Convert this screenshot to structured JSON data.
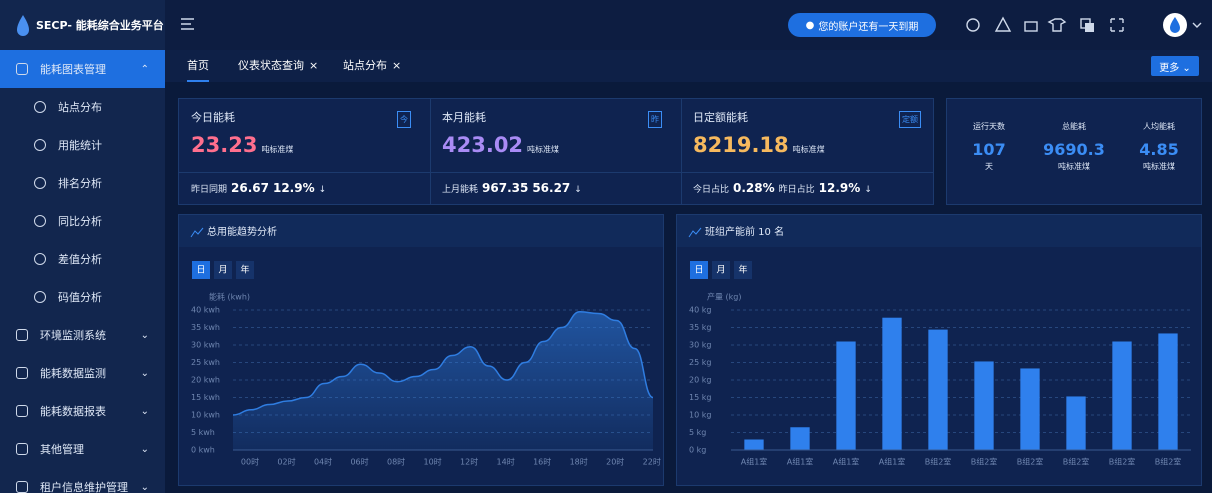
{
  "app": {
    "logo_text": "SECP- 能耗综合业务平台",
    "notice": "您的账户还有一天到期",
    "close_icon": "×",
    "more_button": "更多 ⌄"
  },
  "tabs": [
    "首页",
    "仪表状态查询",
    "站点分布"
  ],
  "menu": [
    {
      "label": "能耗图表管理",
      "arrow": "⌃",
      "children": [
        "站点分布",
        "用能统计",
        "排名分析",
        "同比分析",
        "差值分析",
        "码值分析"
      ]
    },
    {
      "label": "环境监测系统",
      "arrow": "⌄"
    },
    {
      "label": "能耗数据监测",
      "arrow": "⌄"
    },
    {
      "label": "能耗数据报表",
      "arrow": "⌄"
    },
    {
      "label": "其他管理",
      "arrow": "⌄"
    },
    {
      "label": "租户信息维护管理",
      "arrow": "⌄"
    }
  ],
  "stats": [
    {
      "title": "今日能耗",
      "icon": "今",
      "value": 23.23,
      "unit": "吨标准煤",
      "color": "#ff6f8e",
      "footer": {
        "label": "昨日同期",
        "value": 26.67,
        "change": "12.9%",
        "arrow": "↓"
      }
    },
    {
      "title": "本月能耗",
      "icon": "昨",
      "value": 423.02,
      "unit": "吨标准煤",
      "color": "#a98bf5",
      "footer": {
        "label": "上月能耗",
        "value": 967.35,
        "change": 56.27,
        "arrow": "↓"
      }
    },
    {
      "title": "日定额能耗",
      "icon": "定额",
      "value": 8219.18,
      "unit": "吨标准煤",
      "color": "#f6b95e",
      "footer": {
        "label": "今日占比",
        "value": "0.28%",
        "label2": "昨日占比",
        "change": "12.9%",
        "arrow": "↓"
      }
    }
  ],
  "summary": [
    {
      "label": "运行天数",
      "value": 107,
      "unit": "天"
    },
    {
      "label": "总能耗",
      "value": 9690.3,
      "unit": "吨标准煤"
    },
    {
      "label": "人均能耗",
      "value": 4.85,
      "unit": "吨标准煤"
    }
  ],
  "chart_data": [
    {
      "type": "area",
      "title": "总用能趋势分析",
      "buttons": [
        "日",
        "月",
        "年"
      ],
      "y_label": "能耗 (kwh)",
      "color": "#2f7de1",
      "categories": [
        "00时",
        null,
        "02时",
        null,
        "04时",
        null,
        "06时",
        null,
        "08时",
        null,
        "10时",
        null,
        "12时",
        null,
        "14时",
        null,
        "16时",
        null,
        "18时",
        null,
        "20时",
        null,
        "22时",
        null
      ],
      "values": [
        10,
        11.5,
        13,
        14,
        15,
        19,
        21,
        24.5,
        22,
        19.5,
        21,
        23,
        27,
        29.5,
        24,
        20,
        25,
        31,
        35,
        39.5,
        39,
        37,
        29,
        15
      ],
      "ylim": [
        0,
        40
      ],
      "yticks": [
        {
          "value": 0,
          "label": "0 kwh"
        },
        {
          "value": 5,
          "label": "5 kwh"
        },
        {
          "value": 10,
          "label": "10 kwh"
        },
        {
          "value": 15,
          "label": "15 kwh"
        },
        {
          "value": 20,
          "label": "20 kwh"
        },
        {
          "value": 25,
          "label": "25 kwh"
        },
        {
          "value": 30,
          "label": "30 kwh"
        },
        {
          "value": 35,
          "label": "35 kwh"
        },
        {
          "value": 40,
          "label": "40 kwh"
        }
      ],
      "grid": true
    },
    {
      "type": "bar",
      "title": "班组产能前 10 名",
      "buttons": [
        "日",
        "月",
        "年"
      ],
      "y_label": "产量 (kg)",
      "color": "#2f80ed",
      "categories": [
        "A组1室",
        "A组1室",
        "A组1室",
        "A组1室",
        "B组2室",
        "B组2室",
        "B组2室",
        "B组2室",
        "B组2室",
        "B组2室"
      ],
      "values": [
        3,
        6.5,
        31,
        37.8,
        34.4,
        25.3,
        23.3,
        15.3,
        31,
        33.3
      ],
      "ylim": [
        0,
        40
      ],
      "yticks": [
        {
          "value": 0,
          "label": "0 kg"
        },
        {
          "value": 5,
          "label": "5 kg"
        },
        {
          "value": 10,
          "label": "10 kg"
        },
        {
          "value": 15,
          "label": "15 kg"
        },
        {
          "value": 20,
          "label": "20 kg"
        },
        {
          "value": 25,
          "label": "25 kg"
        },
        {
          "value": 30,
          "label": "30 kg"
        },
        {
          "value": 35,
          "label": "35 kg"
        },
        {
          "value": 40,
          "label": "40 kg"
        }
      ],
      "grid": true
    }
  ]
}
